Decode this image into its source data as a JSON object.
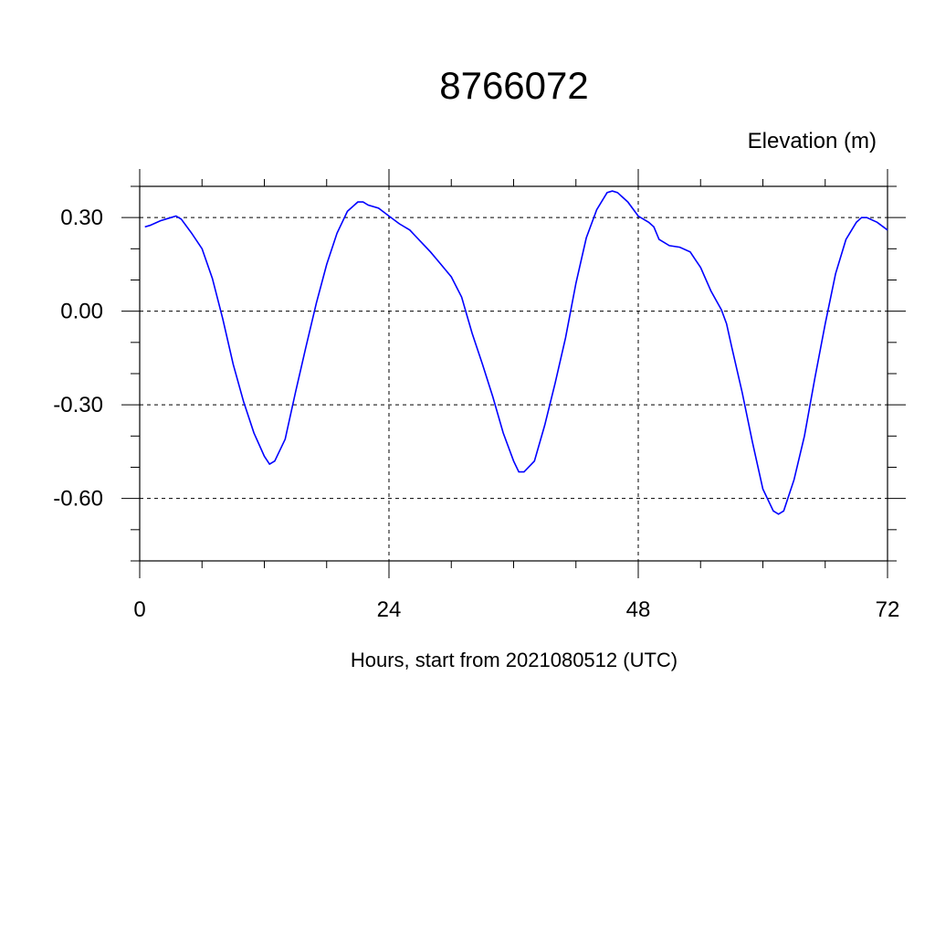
{
  "chart_data": {
    "type": "line",
    "title": "8766072",
    "ylabel": "Elevation (m)",
    "xlabel": "Hours, start from 2021080512 (UTC)",
    "xlim": [
      0,
      72
    ],
    "ylim": [
      -0.8,
      0.4
    ],
    "xticks": [
      0,
      24,
      48,
      72
    ],
    "xtick_labels": [
      "0",
      "24",
      "48",
      "72"
    ],
    "yticks": [
      0.3,
      0.0,
      -0.3,
      -0.6
    ],
    "ytick_labels": [
      "0.30",
      "0.00",
      "-0.30",
      "-0.60"
    ],
    "grid": true,
    "line_color": "#0000ff",
    "x": [
      0.5,
      1,
      2,
      3,
      3.5,
      4,
      5,
      6,
      7,
      8,
      9,
      10,
      11,
      12,
      12.5,
      13,
      14,
      15,
      16,
      17,
      18,
      19,
      20,
      21,
      21.5,
      22,
      23,
      24,
      25,
      26,
      27,
      28,
      29,
      30,
      31,
      32,
      33,
      34,
      35,
      36,
      36.5,
      37,
      38,
      39,
      40,
      41,
      42,
      43,
      44,
      45,
      45.5,
      46,
      47,
      48,
      49,
      49.5,
      50,
      51,
      52,
      53,
      54,
      55,
      56,
      56.5,
      57,
      58,
      59,
      60,
      61,
      61.5,
      62,
      63,
      64,
      65,
      66,
      67,
      68,
      69,
      69.5,
      70,
      71,
      72
    ],
    "y": [
      0.27,
      0.275,
      0.29,
      0.3,
      0.305,
      0.295,
      0.25,
      0.2,
      0.105,
      -0.025,
      -0.17,
      -0.29,
      -0.39,
      -0.465,
      -0.49,
      -0.48,
      -0.41,
      -0.26,
      -0.115,
      0.025,
      0.15,
      0.25,
      0.32,
      0.35,
      0.35,
      0.34,
      0.33,
      0.305,
      0.28,
      0.26,
      0.225,
      0.19,
      0.15,
      0.11,
      0.045,
      -0.07,
      -0.17,
      -0.275,
      -0.39,
      -0.48,
      -0.515,
      -0.515,
      -0.48,
      -0.365,
      -0.23,
      -0.085,
      0.09,
      0.235,
      0.325,
      0.38,
      0.385,
      0.38,
      0.35,
      0.305,
      0.285,
      0.27,
      0.23,
      0.21,
      0.205,
      0.19,
      0.14,
      0.065,
      0.005,
      -0.04,
      -0.115,
      -0.26,
      -0.42,
      -0.57,
      -0.64,
      -0.65,
      -0.64,
      -0.54,
      -0.4,
      -0.215,
      -0.04,
      0.12,
      0.23,
      0.285,
      0.3,
      0.3,
      0.285,
      0.26
    ]
  }
}
